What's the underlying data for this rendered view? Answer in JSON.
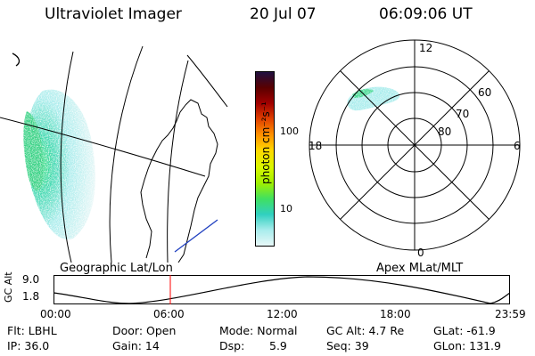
{
  "header": {
    "instrument": "Ultraviolet Imager",
    "date": "20 Jul 07",
    "time": "06:09:06 UT"
  },
  "colorbar": {
    "label": "photon cm⁻²s⁻¹",
    "ticks": [
      "100",
      "10"
    ],
    "colors": [
      "#201040",
      "#5a0000",
      "#a00000",
      "#e04000",
      "#ff9000",
      "#ffd800",
      "#d8f800",
      "#a0f000",
      "#40e060",
      "#30d0c0",
      "#a8ecec",
      "#e8f8f8"
    ]
  },
  "map": {
    "projection_label": "Geographic Lat/Lon"
  },
  "polar": {
    "label": "Apex MLat/MLT",
    "mlt_labels": [
      "12",
      "18",
      "6",
      "0"
    ],
    "lat_labels": [
      "60",
      "70",
      "80"
    ]
  },
  "altitude_plot": {
    "ylabel": "GC Alt",
    "y_ticks": [
      "9.0",
      "1.8"
    ],
    "x_ticks": [
      "00:00",
      "06:00",
      "12:00",
      "18:00",
      "23:59"
    ],
    "marker_color": "#ff0000"
  },
  "status": {
    "filter": "Flt: LBHL",
    "door": "Door: Open",
    "mode": "Mode: Normal",
    "gc_alt": "GC Alt: 4.7 Re",
    "glat": "GLat: -61.9",
    "ip": "IP: 36.0",
    "gain": "Gain: 14",
    "dsp_label": "Dsp:",
    "dsp_value": "5.9",
    "seq": "Seq: 39",
    "glon": "GLon: 131.9"
  }
}
